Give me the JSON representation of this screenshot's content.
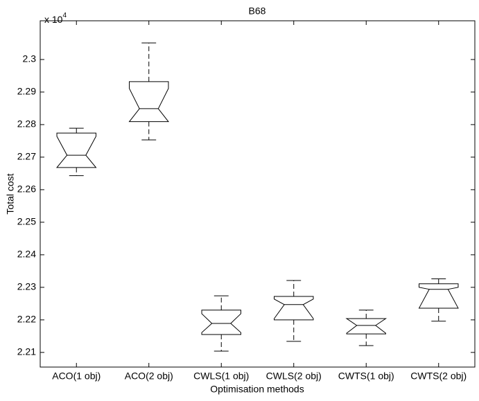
{
  "chart_data": {
    "type": "box",
    "title": "B68",
    "x_label": "Optimisation methods",
    "y_label": "Total cost",
    "y_multiplier": {
      "base": "x 10",
      "exponent": "4"
    },
    "categories": [
      "ACO(1 obj)",
      "ACO(2 obj)",
      "CWLS(1 obj)",
      "CWLS(2 obj)",
      "CWTS(1 obj)",
      "CWTS(2 obj)"
    ],
    "boxes": [
      {
        "whisker_low": 2.2643,
        "q1": 2.2668,
        "median": 2.2706,
        "q3": 2.2774,
        "whisker_high": 2.2789,
        "notch_low": 2.2668,
        "notch_high": 2.2764
      },
      {
        "whisker_low": 2.2753,
        "q1": 2.2809,
        "median": 2.2849,
        "q3": 2.2932,
        "whisker_high": 2.3051,
        "notch_low": 2.2809,
        "notch_high": 2.2911
      },
      {
        "whisker_low": 2.2104,
        "q1": 2.2155,
        "median": 2.2189,
        "q3": 2.223,
        "whisker_high": 2.2274,
        "notch_low": 2.2161,
        "notch_high": 2.2219
      },
      {
        "whisker_low": 2.2134,
        "q1": 2.22,
        "median": 2.2247,
        "q3": 2.2272,
        "whisker_high": 2.2321,
        "notch_low": 2.2204,
        "notch_high": 2.2264
      },
      {
        "whisker_low": 2.2121,
        "q1": 2.2157,
        "median": 2.2183,
        "q3": 2.2204,
        "whisker_high": 2.223,
        "notch_low": 2.2159,
        "notch_high": 2.2204
      },
      {
        "whisker_low": 2.2196,
        "q1": 2.2236,
        "median": 2.2294,
        "q3": 2.2311,
        "whisker_high": 2.2326,
        "notch_low": 2.2236,
        "notch_high": 2.23
      }
    ],
    "color": "#000000",
    "ylim": [
      2.2055,
      2.3119
    ],
    "yticks": [
      2.21,
      2.22,
      2.23,
      2.24,
      2.25,
      2.26,
      2.27,
      2.28,
      2.29,
      2.3
    ]
  }
}
